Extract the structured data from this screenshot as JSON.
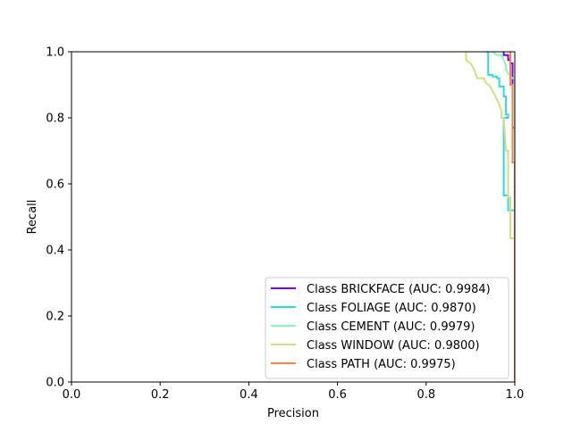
{
  "chart_data": {
    "type": "line",
    "title": "",
    "xlabel": "Precision",
    "ylabel": "Recall",
    "xlim": [
      0,
      1
    ],
    "ylim": [
      0,
      1
    ],
    "xticks": [
      "0.0",
      "0.2",
      "0.4",
      "0.6",
      "0.8",
      "1.0"
    ],
    "yticks": [
      "0.0",
      "0.2",
      "0.4",
      "0.6",
      "0.8",
      "1.0"
    ],
    "grid": false,
    "legend_position": "lower-right",
    "series": [
      {
        "name": "Class BRICKFACE (AUC: 0.9984)",
        "color": "#8000ff",
        "points": [
          [
            0.975,
            1.0
          ],
          [
            0.975,
            0.99
          ],
          [
            0.985,
            0.99
          ],
          [
            0.985,
            0.975
          ],
          [
            0.99,
            0.975
          ],
          [
            0.99,
            0.965
          ],
          [
            0.995,
            0.965
          ],
          [
            0.995,
            0.77
          ],
          [
            1.0,
            0.77
          ],
          [
            1.0,
            0.0
          ]
        ]
      },
      {
        "name": "Class FOLIAGE (AUC: 0.9870)",
        "color": "#2adddd",
        "points": [
          [
            0.935,
            1.0
          ],
          [
            0.94,
            1.0
          ],
          [
            0.94,
            0.93
          ],
          [
            0.95,
            0.93
          ],
          [
            0.95,
            0.925
          ],
          [
            0.96,
            0.925
          ],
          [
            0.96,
            0.92
          ],
          [
            0.965,
            0.92
          ],
          [
            0.965,
            0.895
          ],
          [
            0.975,
            0.895
          ],
          [
            0.975,
            0.865
          ],
          [
            0.98,
            0.865
          ],
          [
            0.98,
            0.81
          ],
          [
            0.985,
            0.81
          ],
          [
            0.985,
            0.8
          ],
          [
            0.975,
            0.8
          ],
          [
            0.975,
            0.565
          ],
          [
            0.985,
            0.565
          ],
          [
            0.985,
            0.52
          ],
          [
            1.0,
            0.52
          ],
          [
            1.0,
            0.0
          ]
        ]
      },
      {
        "name": "Class CEMENT (AUC: 0.9979)",
        "color": "#80ffb4",
        "points": [
          [
            0.95,
            1.0
          ],
          [
            0.96,
            0.99
          ],
          [
            0.97,
            0.99
          ],
          [
            0.975,
            0.975
          ],
          [
            0.98,
            0.96
          ],
          [
            0.98,
            0.945
          ],
          [
            0.985,
            0.935
          ],
          [
            0.99,
            0.925
          ],
          [
            0.995,
            0.92
          ],
          [
            1.0,
            0.92
          ],
          [
            1.0,
            0.0
          ]
        ]
      },
      {
        "name": "Class WINDOW (AUC: 0.9800)",
        "color": "#d4dd80",
        "points": [
          [
            0.89,
            1.0
          ],
          [
            0.89,
            0.975
          ],
          [
            0.895,
            0.97
          ],
          [
            0.9,
            0.965
          ],
          [
            0.905,
            0.955
          ],
          [
            0.91,
            0.94
          ],
          [
            0.915,
            0.92
          ],
          [
            0.93,
            0.92
          ],
          [
            0.935,
            0.905
          ],
          [
            0.945,
            0.895
          ],
          [
            0.95,
            0.88
          ],
          [
            0.955,
            0.87
          ],
          [
            0.96,
            0.855
          ],
          [
            0.965,
            0.84
          ],
          [
            0.97,
            0.82
          ],
          [
            0.97,
            0.8
          ],
          [
            0.975,
            0.8
          ],
          [
            0.98,
            0.7
          ],
          [
            0.985,
            0.7
          ],
          [
            0.985,
            0.56
          ],
          [
            0.99,
            0.56
          ],
          [
            0.99,
            0.435
          ],
          [
            1.0,
            0.435
          ],
          [
            1.0,
            0.0
          ]
        ]
      },
      {
        "name": "Class PATH (AUC: 0.9975)",
        "color": "#ff8040",
        "points": [
          [
            0.99,
            1.0
          ],
          [
            0.99,
            0.9
          ],
          [
            0.995,
            0.9
          ],
          [
            0.995,
            0.665
          ],
          [
            1.0,
            0.665
          ],
          [
            1.0,
            0.0
          ]
        ]
      }
    ]
  }
}
